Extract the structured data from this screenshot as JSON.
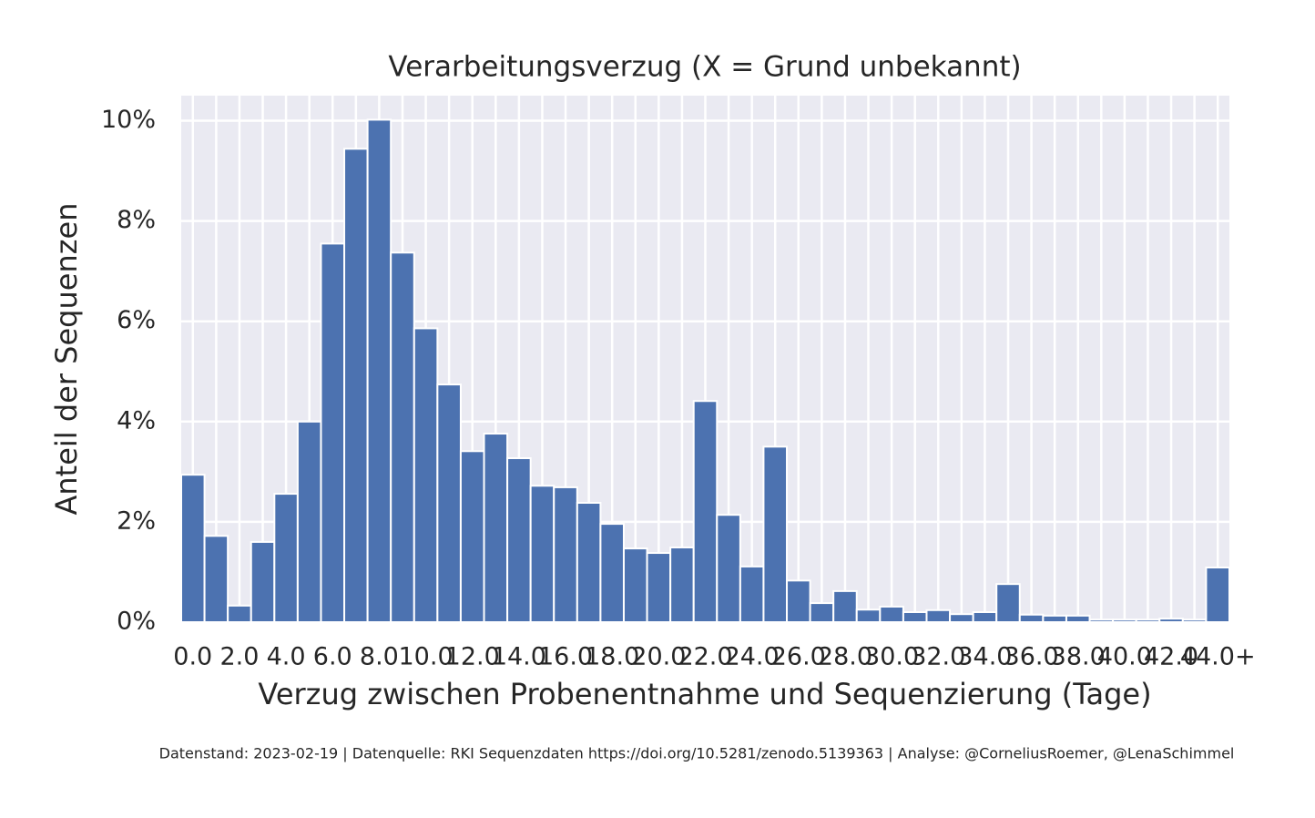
{
  "chart_data": {
    "type": "bar",
    "title": "Verarbeitungsverzug (X = Grund unbekannt)",
    "xlabel": "Verzug zwischen Probenentnahme und Sequenzierung (Tage)",
    "ylabel": "Anteil der Sequenzen",
    "footnote": "Datenstand: 2023-02-19 | Datenquelle: RKI Sequenzdaten https://doi.org/10.5281/zenodo.5139363 | Analyse: @CorneliusRoemer, @LenaSchimmel",
    "categories": [
      "0.0",
      null,
      "2.0",
      null,
      "4.0",
      null,
      "6.0",
      null,
      "8.0",
      null,
      "10.0",
      null,
      "12.0",
      null,
      "14.0",
      null,
      "16.0",
      null,
      "18.0",
      null,
      "20.0",
      null,
      "22.0",
      null,
      "24.0",
      null,
      "26.0",
      null,
      "28.0",
      null,
      "30.0",
      null,
      "32.0",
      null,
      "34.0",
      null,
      "36.0",
      null,
      "38.0",
      null,
      "40.0",
      null,
      "42.0",
      null,
      "44.0+"
    ],
    "values": [
      2.94,
      1.72,
      0.33,
      1.6,
      2.56,
      4.0,
      7.55,
      9.44,
      10.02,
      7.37,
      5.86,
      4.74,
      3.41,
      3.76,
      3.27,
      2.72,
      2.69,
      2.38,
      1.96,
      1.47,
      1.38,
      1.49,
      4.41,
      2.14,
      1.11,
      3.5,
      0.83,
      0.38,
      0.62,
      0.25,
      0.31,
      0.2,
      0.24,
      0.16,
      0.2,
      0.76,
      0.15,
      0.13,
      0.13,
      0.05,
      0.05,
      0.05,
      0.07,
      0.05,
      1.09
    ],
    "color": "#4c72b0",
    "ylim": [
      0,
      10.5
    ],
    "yticks": [
      {
        "value": 0,
        "label": "0%"
      },
      {
        "value": 2,
        "label": "2%"
      },
      {
        "value": 4,
        "label": "4%"
      },
      {
        "value": 6,
        "label": "6%"
      },
      {
        "value": 8,
        "label": "8%"
      },
      {
        "value": 10,
        "label": "10%"
      }
    ],
    "grid": true
  }
}
